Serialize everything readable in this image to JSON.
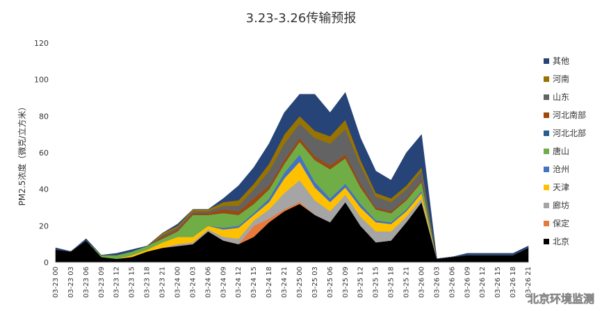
{
  "chart_data": {
    "type": "area",
    "stacked": true,
    "title": "3.23-3.26传输预报",
    "ylabel": "PM2.5浓度（微克/立方米）",
    "ylim": [
      0,
      120
    ],
    "yticks": [
      0,
      20,
      40,
      60,
      80,
      100,
      120
    ],
    "grid": false,
    "legend_position": "right",
    "watermark": "北京环境监测",
    "x": [
      "03-23 00",
      "03-23 03",
      "03-23 06",
      "03-23 09",
      "03-23 12",
      "03-23 15",
      "03-23 18",
      "03-23 21",
      "03-24 00",
      "03-24 03",
      "03-24 06",
      "03-24 09",
      "03-24 12",
      "03-24 15",
      "03-24 18",
      "03-24 21",
      "03-25 00",
      "03-25 03",
      "03-25 06",
      "03-25 09",
      "03-25 12",
      "03-25 15",
      "03-25 18",
      "03-25 21",
      "03-26 00",
      "03-26 03",
      "03-26 06",
      "03-26 09",
      "03-26 12",
      "03-26 15",
      "03-26 18",
      "03-26 21"
    ],
    "series": [
      {
        "name": "北京",
        "color": "#000000",
        "values": [
          7,
          6,
          12,
          3,
          2,
          3,
          6,
          8,
          9,
          10,
          17,
          12,
          10,
          14,
          22,
          28,
          32,
          26,
          22,
          33,
          20,
          11,
          12,
          22,
          33,
          2,
          3,
          4,
          4,
          4,
          4,
          8
        ]
      },
      {
        "name": "保定",
        "color": "#e8793a",
        "values": [
          0,
          0,
          0,
          0,
          0,
          0,
          0,
          0,
          0,
          0,
          0,
          0,
          0,
          6,
          2,
          1,
          1,
          0,
          0,
          0,
          0,
          0,
          0,
          0,
          0,
          0,
          0,
          0,
          0,
          0,
          0,
          0
        ]
      },
      {
        "name": "廊坊",
        "color": "#a5a5a5",
        "values": [
          0,
          0,
          0,
          0,
          0,
          0,
          0,
          0,
          1,
          1,
          1,
          2,
          3,
          3,
          5,
          9,
          12,
          8,
          6,
          4,
          5,
          6,
          5,
          3,
          2,
          0,
          0,
          0,
          0,
          0,
          0,
          0
        ]
      },
      {
        "name": "天津",
        "color": "#ffc000",
        "values": [
          0,
          0,
          0,
          0,
          0,
          1,
          1,
          3,
          4,
          3,
          2,
          4,
          6,
          3,
          4,
          8,
          10,
          7,
          5,
          4,
          5,
          5,
          4,
          3,
          3,
          0,
          0,
          0,
          0,
          0,
          0,
          0
        ]
      },
      {
        "name": "沧州",
        "color": "#4472c4",
        "values": [
          0,
          0,
          0,
          0,
          0,
          0,
          0,
          0,
          0,
          0,
          0,
          1,
          1,
          1,
          2,
          3,
          4,
          3,
          2,
          2,
          2,
          1,
          1,
          1,
          1,
          0,
          0,
          0,
          0,
          0,
          0,
          0
        ]
      },
      {
        "name": "唐山",
        "color": "#70ad47",
        "values": [
          0,
          0,
          0,
          1,
          2,
          2,
          2,
          2,
          3,
          12,
          6,
          8,
          6,
          5,
          5,
          5,
          7,
          12,
          16,
          14,
          9,
          6,
          5,
          5,
          5,
          0,
          0,
          0,
          0,
          0,
          0,
          0
        ]
      },
      {
        "name": "河北北部",
        "color": "#255e91",
        "values": [
          0,
          0,
          0,
          0,
          0,
          0,
          0,
          0,
          0,
          0,
          0,
          0,
          0,
          0,
          0,
          0,
          0,
          0,
          0,
          0,
          0,
          0,
          0,
          0,
          0,
          0,
          0,
          0,
          0,
          0,
          0,
          0
        ]
      },
      {
        "name": "河北南部",
        "color": "#9e480e",
        "values": [
          0,
          0,
          0,
          0,
          0,
          0,
          0,
          1,
          1,
          1,
          1,
          2,
          2,
          3,
          2,
          2,
          2,
          2,
          2,
          2,
          2,
          1,
          1,
          1,
          1,
          0,
          0,
          0,
          0,
          0,
          0,
          0
        ]
      },
      {
        "name": "山东",
        "color": "#636363",
        "values": [
          0,
          0,
          0,
          0,
          0,
          0,
          0,
          1,
          1,
          1,
          1,
          2,
          3,
          5,
          8,
          9,
          8,
          10,
          12,
          14,
          10,
          6,
          5,
          5,
          5,
          0,
          0,
          0,
          0,
          0,
          0,
          0
        ]
      },
      {
        "name": "河南",
        "color": "#997300",
        "values": [
          0,
          0,
          0,
          0,
          0,
          0,
          0,
          1,
          1,
          1,
          1,
          2,
          3,
          3,
          4,
          5,
          4,
          4,
          4,
          5,
          3,
          2,
          2,
          2,
          2,
          0,
          0,
          0,
          0,
          0,
          0,
          0
        ]
      },
      {
        "name": "其他",
        "color": "#264478",
        "values": [
          1,
          0,
          1,
          0,
          1,
          1,
          0,
          0,
          1,
          0,
          0,
          2,
          8,
          9,
          11,
          12,
          12,
          20,
          13,
          15,
          12,
          12,
          10,
          18,
          18,
          0,
          0,
          1,
          1,
          1,
          1,
          1
        ]
      }
    ]
  }
}
